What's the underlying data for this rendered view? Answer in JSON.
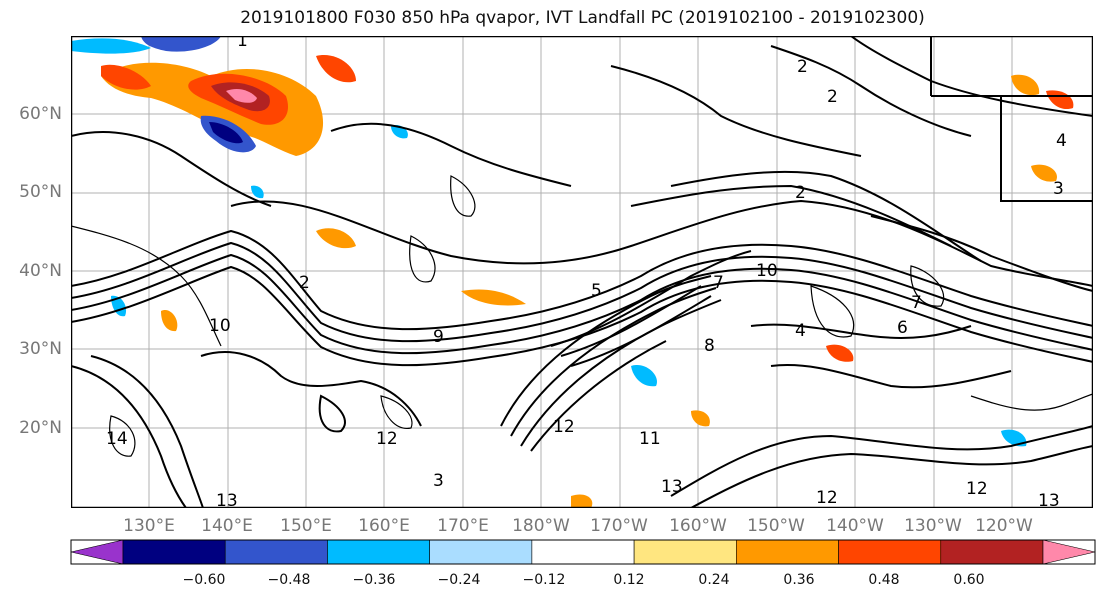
{
  "title": "2019101800 F030 850 hPa qvapor, IVT Landfall PC (2019102100 - 2019102300)",
  "lat_labels": [
    "60°N",
    "50°N",
    "40°N",
    "30°N",
    "20°N"
  ],
  "lon_labels": [
    "130°E",
    "140°E",
    "150°E",
    "160°E",
    "170°E",
    "180°W",
    "170°W",
    "160°W",
    "150°W",
    "140°W",
    "130°W",
    "120°W"
  ],
  "contour_labels": [
    "2",
    "2",
    "2",
    "4",
    "3",
    "10",
    "7",
    "7",
    "4",
    "6",
    "9",
    "10",
    "2",
    "12",
    "12",
    "13",
    "3",
    "12",
    "14",
    "11",
    "13",
    "12",
    "13",
    "1",
    "5",
    "8"
  ],
  "colorbar": {
    "colors": [
      "#9933cc",
      "#000080",
      "#3355cc",
      "#00bbff",
      "#aaddff",
      "#ffffff",
      "#ffe680",
      "#ff9900",
      "#ff4500",
      "#b22222",
      "#ff88aa"
    ],
    "ticks": [
      "−0.60",
      "−0.48",
      "−0.36",
      "−0.24",
      "−0.12",
      "0.12",
      "0.24",
      "0.36",
      "0.48",
      "0.60"
    ]
  }
}
